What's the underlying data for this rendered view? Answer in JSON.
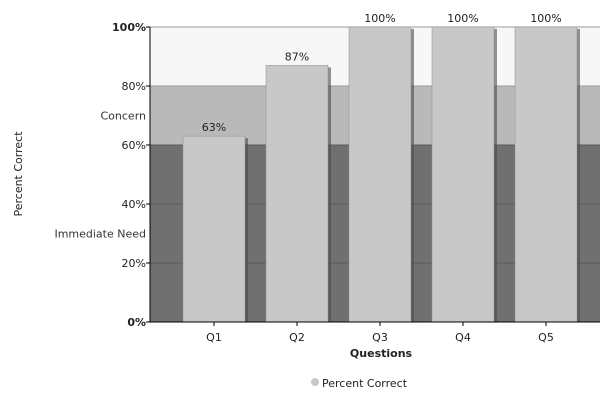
{
  "chart_data": {
    "type": "bar",
    "title": "",
    "xlabel": "Questions",
    "ylabel": "Percent Correct",
    "categories": [
      "Q1",
      "Q2",
      "Q3",
      "Q4",
      "Q5"
    ],
    "series": [
      {
        "name": "Percent Correct",
        "values": [
          63,
          87,
          100,
          100,
          100
        ]
      }
    ],
    "data_labels": [
      "63%",
      "87%",
      "100%",
      "100%",
      "100%"
    ],
    "ylim": [
      0,
      100
    ],
    "yticks": [
      0,
      20,
      40,
      60,
      80,
      100
    ],
    "ytick_labels": [
      "0%",
      "20%",
      "40%",
      "60%",
      "80%",
      "100%"
    ],
    "bands": [
      {
        "from": 0,
        "to": 60,
        "color": "#707070"
      },
      {
        "from": 60,
        "to": 80,
        "color": "#b9b9b9"
      },
      {
        "from": 80,
        "to": 100,
        "color": "#f7f7f7"
      }
    ],
    "band_labels": [
      {
        "label": "Concern",
        "at": 70
      },
      {
        "label": "Immediate Need",
        "at": 30
      }
    ],
    "bar_color": "#c8c8c8",
    "legend_position": "bottom",
    "legend_marker_color": "#c8c8c8"
  }
}
